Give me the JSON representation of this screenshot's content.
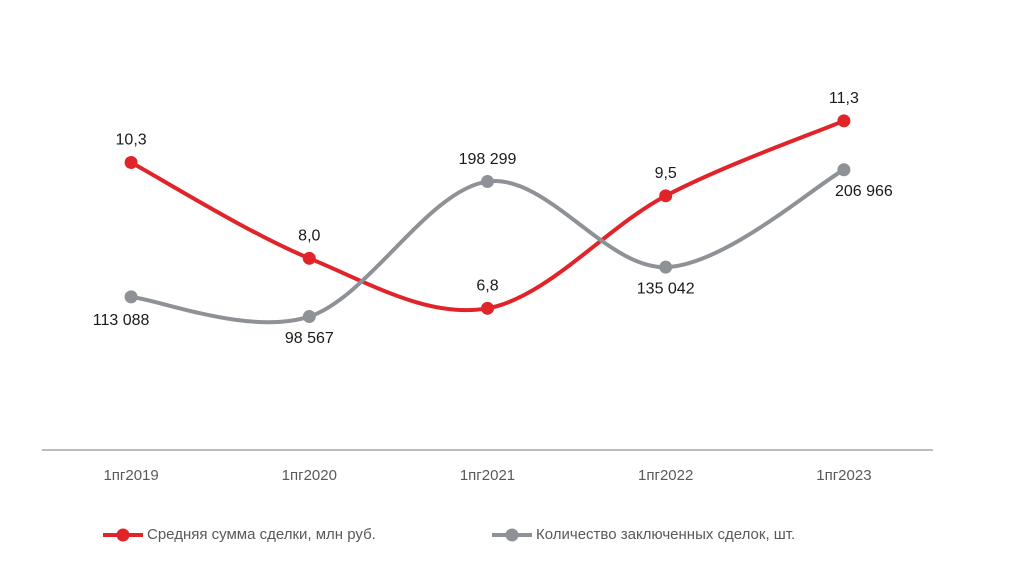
{
  "chart_data": {
    "type": "line",
    "categories": [
      "1пг2019",
      "1пг2020",
      "1пг2021",
      "1пг2022",
      "1пг2023"
    ],
    "series": [
      {
        "name": "Средняя сумма сделки, млн руб.",
        "color": "#e0242a",
        "values": [
          10.3,
          8.0,
          6.8,
          9.5,
          11.3
        ],
        "value_labels": [
          "10,3",
          "8,0",
          "6,8",
          "9,5",
          "11,3"
        ]
      },
      {
        "name": "Количество заключенных сделок, шт.",
        "color": "#8e9195",
        "axis": "y2",
        "values": [
          113088,
          98567,
          198299,
          135042,
          206966
        ],
        "value_labels": [
          "113 088",
          "98 567",
          "198 299",
          "135 042",
          "206 966"
        ]
      }
    ],
    "ylim": [
      3.4,
      12.4
    ],
    "y2lim": [
      0,
      277000
    ],
    "smooth": true,
    "legend": "bottom"
  }
}
